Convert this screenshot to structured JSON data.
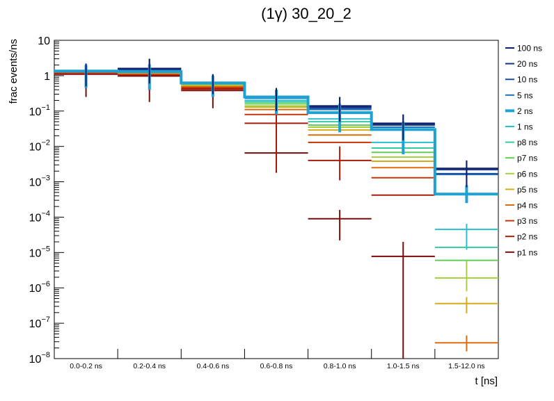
{
  "chart_data": {
    "type": "step",
    "title": "(1γ) 30_20_2",
    "xlabel": "t [ns]",
    "ylabel": "frac events/ns",
    "yscale": "log",
    "ylim": [
      1e-08,
      10
    ],
    "grid": false,
    "legend_position": "right",
    "categories": [
      "0.0-0.2 ns",
      "0.2-0.4 ns",
      "0.4-0.6 ns",
      "0.6-0.8 ns",
      "0.8-1.0 ns",
      "1.0-1.5 ns",
      "1.5-12.0 ns"
    ],
    "y_ticks": [
      {
        "value": 1e-08,
        "base": "10",
        "exp": "−8"
      },
      {
        "value": 1e-07,
        "base": "10",
        "exp": "−7"
      },
      {
        "value": 1e-06,
        "base": "10",
        "exp": "−6"
      },
      {
        "value": 1e-05,
        "base": "10",
        "exp": "−5"
      },
      {
        "value": 0.0001,
        "base": "10",
        "exp": "−4"
      },
      {
        "value": 0.001,
        "base": "10",
        "exp": "−3"
      },
      {
        "value": 0.01,
        "base": "10",
        "exp": "−2"
      },
      {
        "value": 0.1,
        "base": "10",
        "exp": "−1"
      },
      {
        "value": 1,
        "base": "1",
        "exp": ""
      },
      {
        "value": 10,
        "base": "10",
        "exp": ""
      }
    ],
    "series": [
      {
        "name": "100 ns",
        "color": "#0d1f6b",
        "values": [
          1.3,
          1.6,
          0.65,
          0.25,
          0.14,
          0.045,
          0.0024
        ],
        "errors": [
          [
            0.5,
            2.2
          ],
          [
            0.6,
            3.0
          ],
          [
            0.3,
            1.1
          ],
          [
            0.1,
            0.45
          ],
          [
            0.05,
            0.25
          ],
          [
            0.015,
            0.08
          ],
          [
            0.0007,
            0.004
          ]
        ]
      },
      {
        "name": "20 ns",
        "color": "#15357f",
        "values": [
          1.3,
          1.55,
          0.64,
          0.24,
          0.13,
          0.042,
          0.0022
        ],
        "errors": null
      },
      {
        "name": "10 ns",
        "color": "#1b4fa3",
        "values": [
          1.3,
          1.5,
          0.63,
          0.24,
          0.12,
          0.04,
          0.0017
        ],
        "errors": null
      },
      {
        "name": "5 ns",
        "color": "#1d72b8",
        "values": [
          1.3,
          1.45,
          0.62,
          0.23,
          0.11,
          0.035,
          0.0016
        ],
        "errors": null
      },
      {
        "name": "2 ns",
        "color": "#1fa2d2",
        "values": [
          1.35,
          1.3,
          0.62,
          0.25,
          0.09,
          0.03,
          0.00045
        ],
        "errors": [
          [
            0.45,
            2.0
          ],
          [
            0.4,
            2.1
          ],
          [
            0.25,
            1.0
          ],
          [
            0.08,
            0.4
          ],
          [
            0.025,
            0.16
          ],
          [
            0.006,
            0.05
          ],
          [
            0.00025,
            0.0008
          ]
        ]
      },
      {
        "name": "1 ns",
        "color": "#27c1cf",
        "values": [
          1.3,
          1.3,
          0.62,
          0.2,
          0.06,
          0.013,
          4.5e-05
        ],
        "errors": [
          null,
          null,
          null,
          null,
          null,
          null,
          [
            1.2e-05,
            6.5e-05
          ]
        ]
      },
      {
        "name": "p8 ns",
        "color": "#38c9a0",
        "values": [
          1.3,
          1.28,
          0.6,
          0.18,
          0.05,
          0.009,
          1.4e-05
        ],
        "errors": null
      },
      {
        "name": "p7 ns",
        "color": "#63cc58",
        "values": [
          1.3,
          1.27,
          0.58,
          0.16,
          0.04,
          0.0068,
          6e-06
        ],
        "errors": null
      },
      {
        "name": "p6 ns",
        "color": "#a7cf3c",
        "values": [
          1.3,
          1.25,
          0.56,
          0.14,
          0.035,
          0.005,
          1.9e-06
        ],
        "errors": [
          null,
          null,
          null,
          null,
          null,
          null,
          [
            8e-07,
            6e-06
          ]
        ]
      },
      {
        "name": "p5 ns",
        "color": "#d2ae1a",
        "values": [
          1.28,
          1.2,
          0.53,
          0.13,
          0.029,
          0.0038,
          3.6e-07
        ],
        "errors": [
          null,
          null,
          null,
          null,
          null,
          null,
          [
            1.9e-07,
            5.5e-07
          ]
        ]
      },
      {
        "name": "p4 ns",
        "color": "#dd6a0f",
        "values": [
          1.25,
          1.15,
          0.5,
          0.11,
          0.021,
          0.0025,
          2.8e-08
        ],
        "errors": [
          null,
          null,
          null,
          null,
          null,
          null,
          [
            1.6e-08,
            4.5e-08
          ]
        ]
      },
      {
        "name": "p3 ns",
        "color": "#c53408",
        "values": [
          1.2,
          1.1,
          0.46,
          0.08,
          0.013,
          0.0013,
          null
        ],
        "errors": null
      },
      {
        "name": "p2 ns",
        "color": "#a61a06",
        "values": [
          1.15,
          1.05,
          0.42,
          0.045,
          0.004,
          0.00042,
          null
        ],
        "errors": [
          null,
          null,
          null,
          [
            0.002,
            0.45
          ],
          [
            0.0011,
            0.01
          ],
          null,
          null
        ]
      },
      {
        "name": "p1 ns",
        "color": "#7a0a0a",
        "values": [
          1.1,
          0.98,
          0.38,
          0.0065,
          9e-05,
          7.8e-06,
          null
        ],
        "errors": [
          [
            0.25,
            1.8
          ],
          [
            0.18,
            1.9
          ],
          [
            0.12,
            0.7
          ],
          [
            0.0018,
            0.016
          ],
          [
            2.2e-05,
            0.00016
          ],
          [
            1e-08,
            2e-05
          ],
          null
        ]
      }
    ]
  }
}
